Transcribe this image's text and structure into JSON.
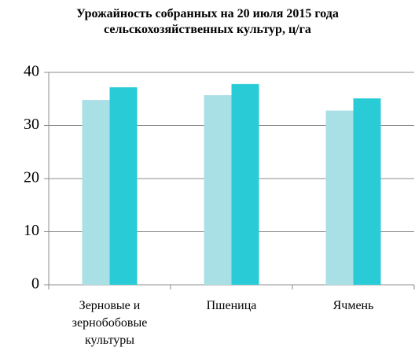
{
  "chart_data": {
    "type": "bar",
    "title": "Урожайность собранных на 20 июля 2015 года сельскохозяйственных культур, ц/га",
    "categories": [
      "Зерновые и зернобобовые культуры",
      "Пшеница",
      "Ячмень"
    ],
    "series": [
      {
        "color": "#a8e0e6",
        "values": [
          34.8,
          35.7,
          32.8
        ]
      },
      {
        "color": "#29ccd6",
        "values": [
          37.2,
          37.8,
          35.1
        ]
      }
    ],
    "ylim": [
      0,
      40
    ],
    "yticks": [
      0,
      10,
      20,
      30,
      40
    ],
    "grid": true
  }
}
